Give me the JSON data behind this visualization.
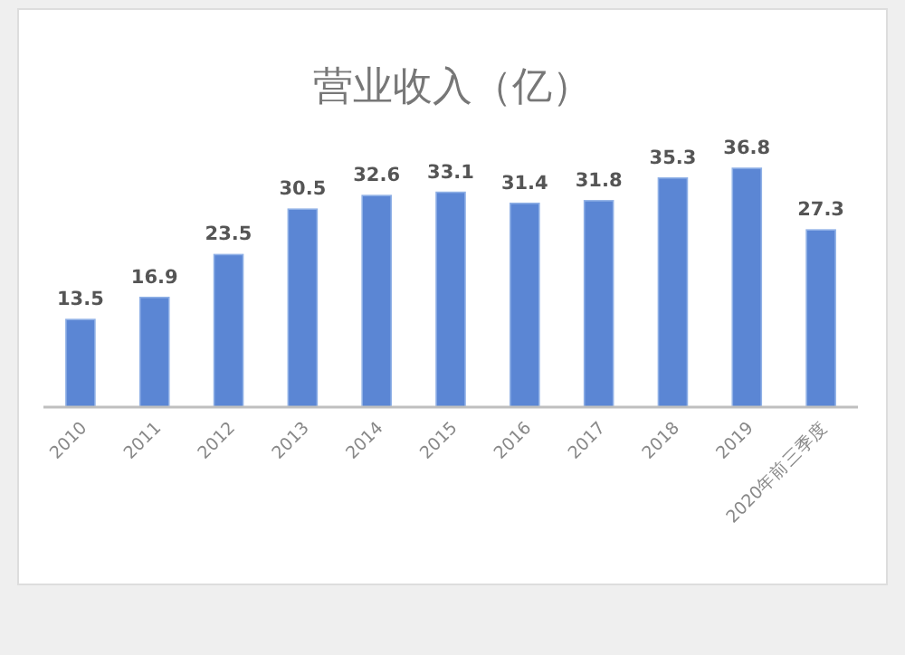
{
  "chart_data": {
    "type": "bar",
    "title": "营业收入（亿）",
    "categories": [
      "2010",
      "2011",
      "2012",
      "2013",
      "2014",
      "2015",
      "2016",
      "2017",
      "2018",
      "2019",
      "2020年前三季度"
    ],
    "values": [
      13.5,
      16.9,
      23.5,
      30.5,
      32.6,
      33.1,
      31.4,
      31.8,
      35.3,
      36.8,
      27.3
    ],
    "color": "#5b86d4",
    "data_labels": true
  }
}
